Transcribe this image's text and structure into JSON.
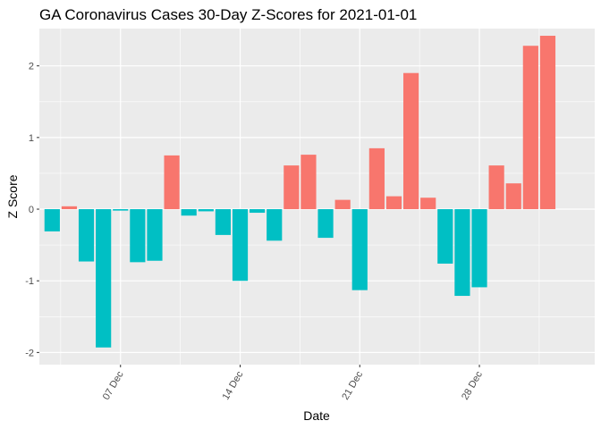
{
  "chart_data": {
    "type": "bar",
    "title": "GA Coronavirus Cases 30-Day Z-Scores for 2021-01-01",
    "xlabel": "Date",
    "ylabel": "Z Score",
    "x_tick_labels": [
      {
        "label": "07 Dec",
        "day": 7
      },
      {
        "label": "14 Dec",
        "day": 14
      },
      {
        "label": "21 Dec",
        "day": 21
      },
      {
        "label": "28 Dec",
        "day": 28
      }
    ],
    "y_ticks": [
      -2,
      -1,
      0,
      1,
      2
    ],
    "ylim": [
      -2.17,
      2.52
    ],
    "x_range_days": [
      2.25,
      34.75
    ],
    "grid": true,
    "legend": "none",
    "colors": {
      "positive": "#f8766d",
      "negative": "#00bfc4",
      "panel": "#ebebeb",
      "grid": "#ffffff"
    },
    "series": [
      {
        "name": "Z Score",
        "dates": [
          "2020-12-03",
          "2020-12-04",
          "2020-12-05",
          "2020-12-06",
          "2020-12-07",
          "2020-12-08",
          "2020-12-09",
          "2020-12-10",
          "2020-12-11",
          "2020-12-12",
          "2020-12-13",
          "2020-12-14",
          "2020-12-15",
          "2020-12-16",
          "2020-12-17",
          "2020-12-18",
          "2020-12-19",
          "2020-12-20",
          "2020-12-21",
          "2020-12-22",
          "2020-12-23",
          "2020-12-24",
          "2020-12-25",
          "2020-12-26",
          "2020-12-27",
          "2020-12-28",
          "2020-12-29",
          "2020-12-30",
          "2020-12-31",
          "2021-01-01"
        ],
        "days": [
          3,
          4,
          5,
          6,
          7,
          8,
          9,
          10,
          11,
          12,
          13,
          14,
          15,
          16,
          17,
          18,
          19,
          20,
          21,
          22,
          23,
          24,
          25,
          26,
          27,
          28,
          29,
          30,
          31,
          32
        ],
        "values": [
          -0.31,
          0.04,
          -0.73,
          -1.93,
          -0.02,
          -0.74,
          -0.72,
          0.75,
          -0.09,
          -0.03,
          -0.36,
          -1.0,
          -0.05,
          -0.44,
          0.61,
          0.76,
          -0.4,
          0.13,
          -1.13,
          0.85,
          0.18,
          1.9,
          0.16,
          -0.76,
          -1.21,
          -1.09,
          0.61,
          0.36,
          2.28,
          2.42
        ]
      }
    ]
  }
}
